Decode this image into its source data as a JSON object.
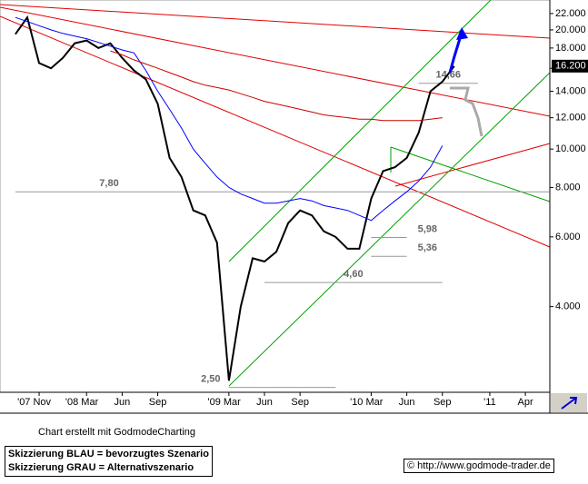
{
  "chart_data": {
    "type": "line",
    "x": [
      "2007-09",
      "2007-10",
      "2007-11",
      "2007-12",
      "2008-01",
      "2008-02",
      "2008-03",
      "2008-04",
      "2008-05",
      "2008-06",
      "2008-07",
      "2008-08",
      "2008-09",
      "2008-10",
      "2008-11",
      "2008-12",
      "2009-01",
      "2009-02",
      "2009-03",
      "2009-04",
      "2009-05",
      "2009-06",
      "2009-07",
      "2009-08",
      "2009-09",
      "2009-10",
      "2009-11",
      "2009-12",
      "2010-01",
      "2010-02",
      "2010-03",
      "2010-04",
      "2010-05",
      "2010-06",
      "2010-07",
      "2010-08",
      "2010-09",
      "2010-10"
    ],
    "series": [
      {
        "color": "#000000",
        "values": [
          19.5,
          21.5,
          16.5,
          16.0,
          17.0,
          18.5,
          18.8,
          18.0,
          18.5,
          17.0,
          15.8,
          15.0,
          13.0,
          9.5,
          8.5,
          7.0,
          6.8,
          5.8,
          2.6,
          4.0,
          5.3,
          5.2,
          5.5,
          6.5,
          7.0,
          6.8,
          6.2,
          6.0,
          5.6,
          5.6,
          7.5,
          8.8,
          9.0,
          9.5,
          11.0,
          14.0,
          14.8,
          16.2
        ]
      },
      {
        "color": "#0000ff",
        "values": [
          21.5,
          21.0,
          20.5,
          20.0,
          19.6,
          19.3,
          19.0,
          18.6,
          18.2,
          17.8,
          17.5,
          15.8,
          14.0,
          12.6,
          11.3,
          10.0,
          9.2,
          8.5,
          8.0,
          7.7,
          7.5,
          7.3,
          7.3,
          7.4,
          7.5,
          7.4,
          7.2,
          7.1,
          7.0,
          6.8,
          6.6,
          7.0,
          7.4,
          7.8,
          8.3,
          9.0,
          10.2,
          null
        ]
      },
      {
        "color": "#cc0000",
        "values": [
          null,
          null,
          null,
          null,
          null,
          null,
          null,
          null,
          17.7,
          17.3,
          16.8,
          16.4,
          16.0,
          15.6,
          15.2,
          14.8,
          14.5,
          14.3,
          14.1,
          13.8,
          13.5,
          13.2,
          13.0,
          12.8,
          12.6,
          12.4,
          12.2,
          12.1,
          12.0,
          11.9,
          11.9,
          11.8,
          11.8,
          11.8,
          11.8,
          11.9,
          12.0,
          null
        ]
      }
    ],
    "ylim": [
      2.43,
      23.8
    ],
    "log_scale": true,
    "yticks": [
      {
        "value": 4,
        "label": "4.000"
      },
      {
        "value": 6,
        "label": "6.000"
      },
      {
        "value": 8,
        "label": "8.000"
      },
      {
        "value": 10,
        "label": "10.000"
      },
      {
        "value": 12,
        "label": "12.000"
      },
      {
        "value": 14,
        "label": "14.000"
      },
      {
        "value": 16,
        "label": "16.000"
      },
      {
        "value": 18,
        "label": "18.000"
      },
      {
        "value": 20,
        "label": "20.000"
      },
      {
        "value": 22,
        "label": "22.000"
      }
    ],
    "xticks": [
      {
        "value": "2007-11",
        "label": "'07 Nov"
      },
      {
        "value": "2008-03",
        "label": "'08 Mar"
      },
      {
        "value": "2008-06",
        "label": "Jun"
      },
      {
        "value": "2008-09",
        "label": "Sep"
      },
      {
        "value": "2009-03",
        "label": "'09 Mar"
      },
      {
        "value": "2009-06",
        "label": "Jun"
      },
      {
        "value": "2009-09",
        "label": "Sep"
      },
      {
        "value": "2010-03",
        "label": "'10 Mar"
      },
      {
        "value": "2010-06",
        "label": "Jun"
      },
      {
        "value": "2010-09",
        "label": "Sep"
      },
      {
        "value": "2011-01",
        "label": "'11"
      },
      {
        "value": "2011-04",
        "label": "Apr"
      }
    ],
    "levels": [
      {
        "value": 7.8,
        "label": "7,80",
        "from": "2007-09",
        "to": "2011-06"
      },
      {
        "value": 5.98,
        "label": "5,98",
        "from": "2010-03",
        "to": "2010-06"
      },
      {
        "value": 5.36,
        "label": "5,36",
        "from": "2010-03",
        "to": "2010-06"
      },
      {
        "value": 4.6,
        "label": "4,60",
        "from": "2009-06",
        "to": "2010-09"
      },
      {
        "value": 2.5,
        "label": "2,50",
        "from": "2009-03",
        "to": "2009-12"
      },
      {
        "value": 14.66,
        "label": "14,66",
        "from": "2010-07",
        "to": "2010-12"
      }
    ],
    "last_price": {
      "value": 16.2,
      "label": "16.200"
    },
    "credit": "Chart erstellt mit GodmodeCharting",
    "notes": [
      "Skizzierung BLAU = bevorzugtes Szenario",
      "Skizzierung GRAU = Alternativszenario"
    ],
    "source": "© http://www.godmode-trader.de"
  }
}
